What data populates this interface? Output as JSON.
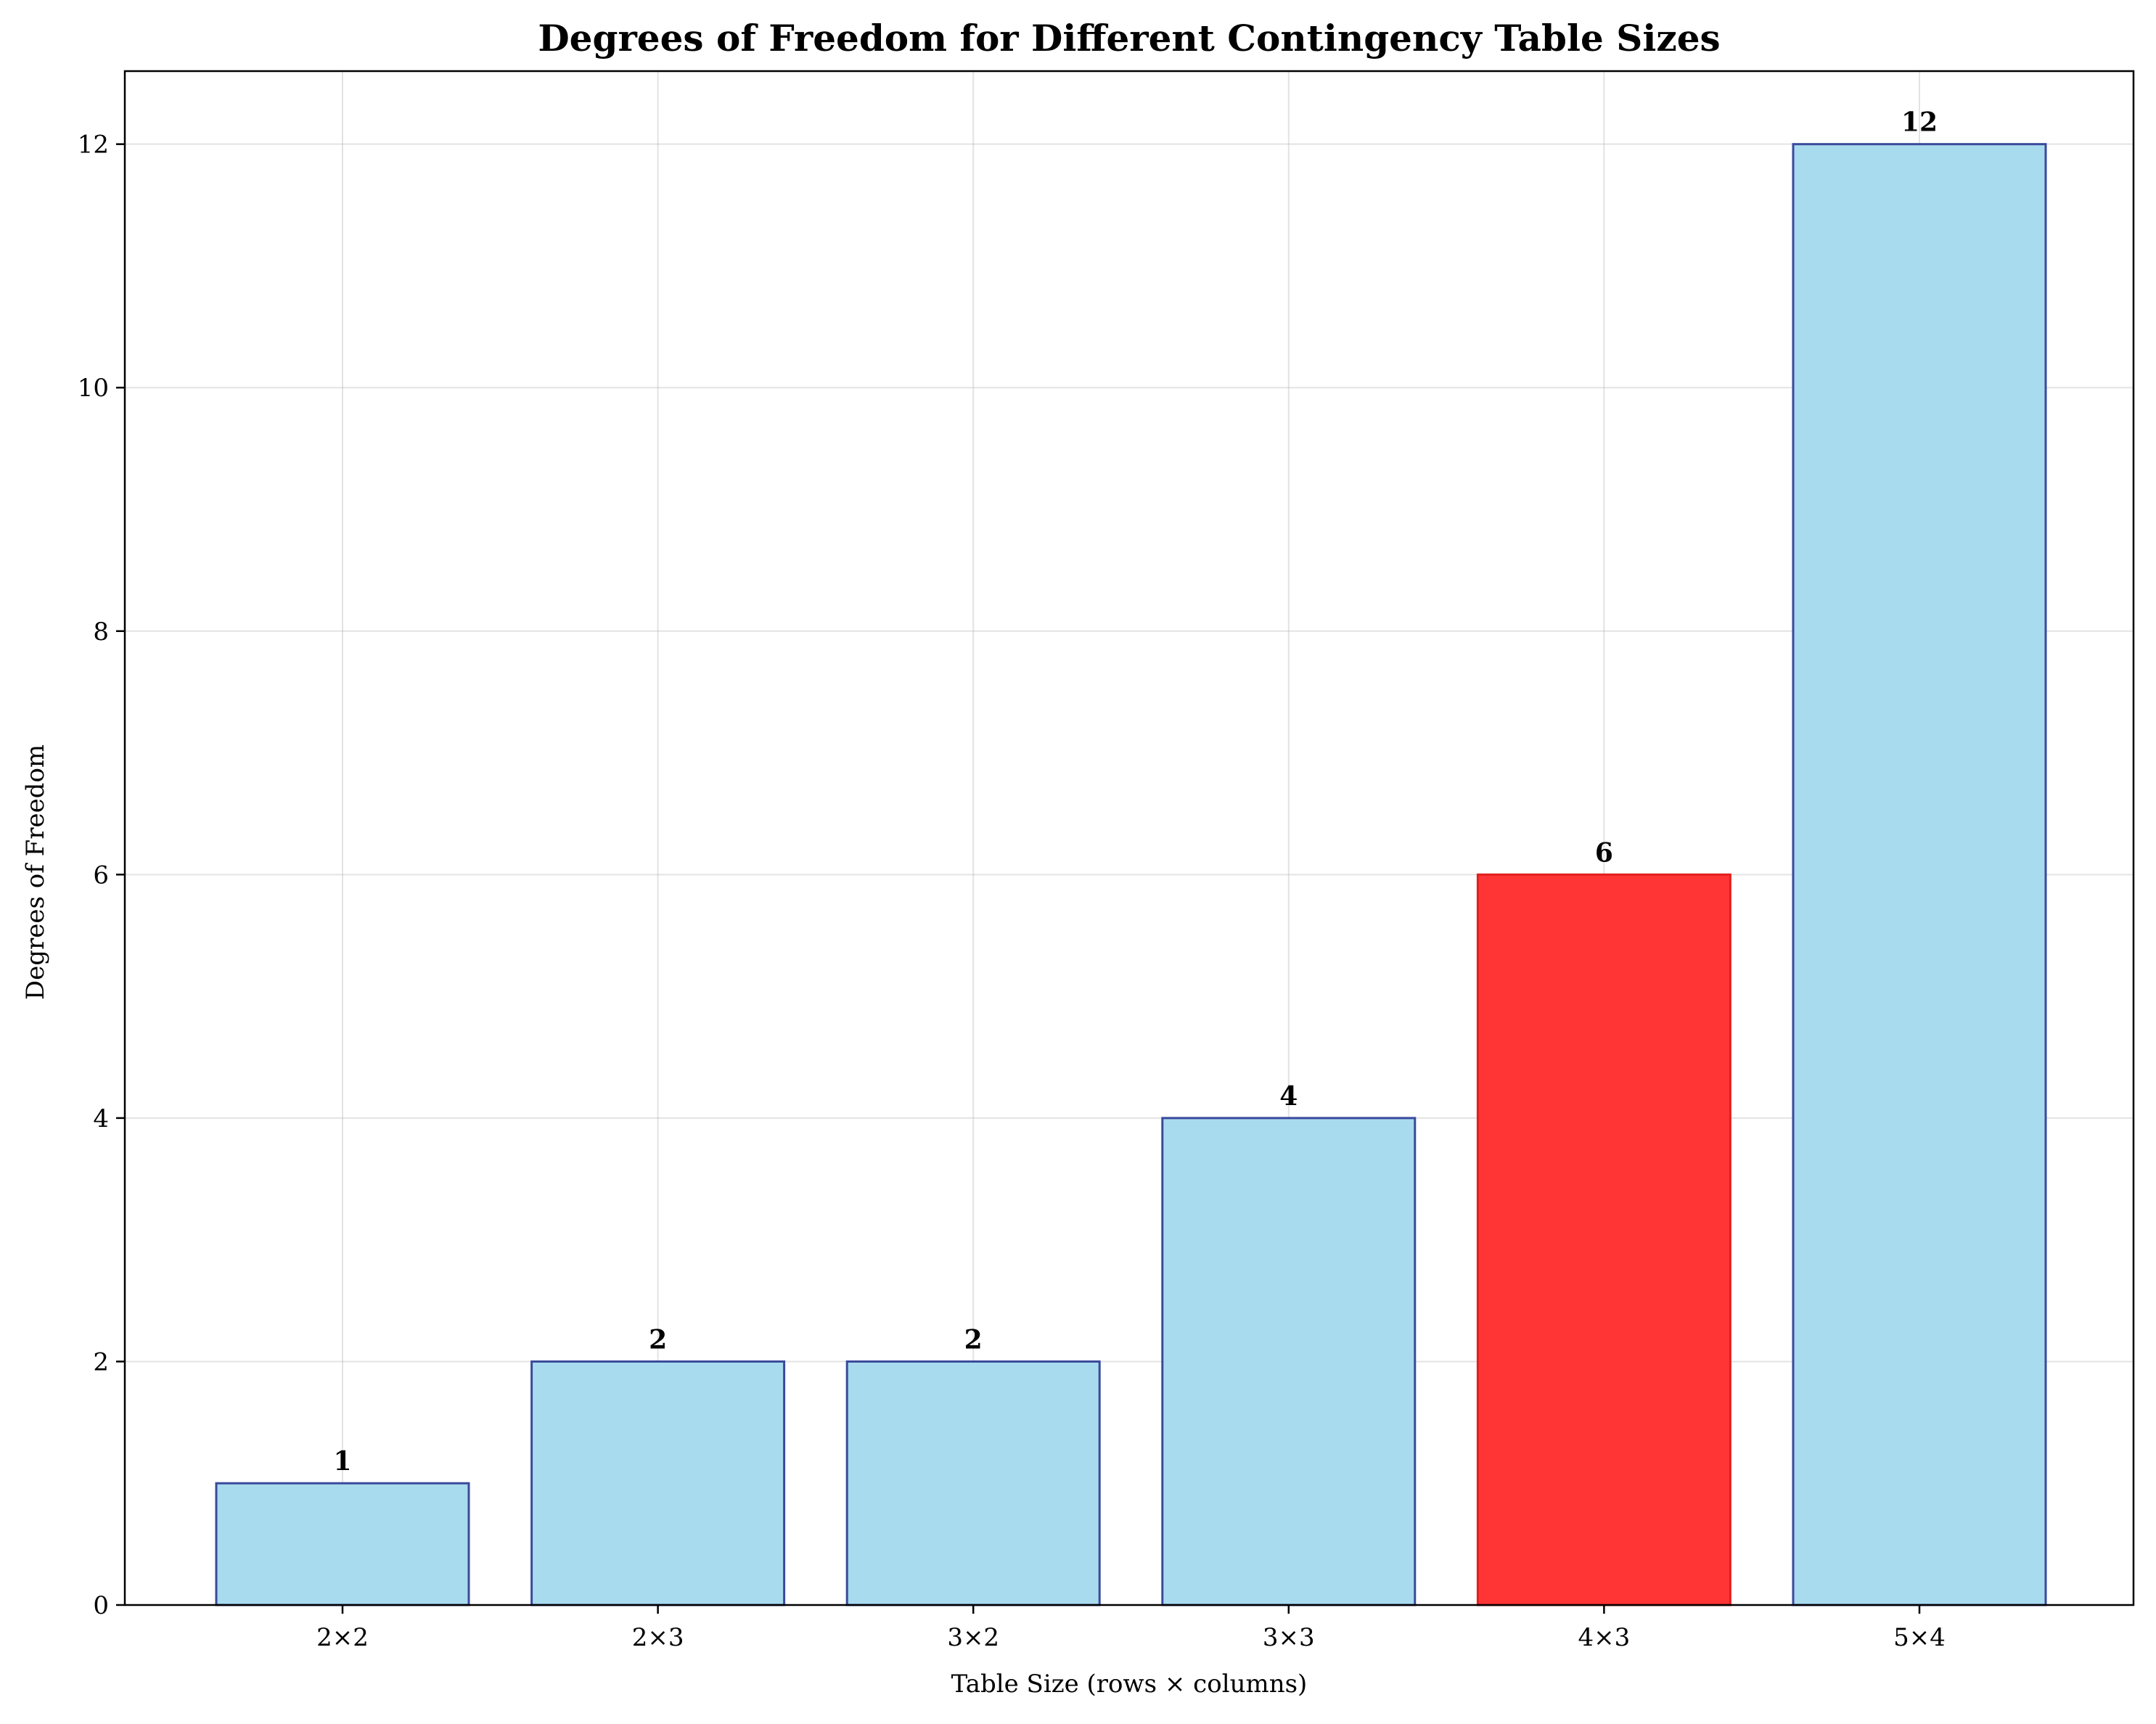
{
  "chart_data": {
    "type": "bar",
    "title": "Degrees of Freedom for Different Contingency Table Sizes",
    "xlabel": "Table Size (rows × columns)",
    "ylabel": "Degrees of Freedom",
    "categories": [
      "2×2",
      "2×3",
      "3×2",
      "3×3",
      "4×3",
      "5×4"
    ],
    "values": [
      1,
      2,
      2,
      4,
      6,
      12
    ],
    "value_labels": [
      "1",
      "2",
      "2",
      "4",
      "6",
      "12"
    ],
    "highlight_category": "4×3",
    "ylim": [
      0,
      12.6
    ],
    "yticks": [
      0,
      2,
      4,
      6,
      8,
      10,
      12
    ],
    "ytick_labels": [
      "0",
      "2",
      "4",
      "6",
      "8",
      "10",
      "12"
    ],
    "grid": true,
    "legend": "none",
    "colors": {
      "bar_fill": "#a8dbee",
      "bar_edge": "#3a4a9c",
      "highlight_fill": "#ff3434",
      "highlight_edge": "#e02020"
    }
  }
}
